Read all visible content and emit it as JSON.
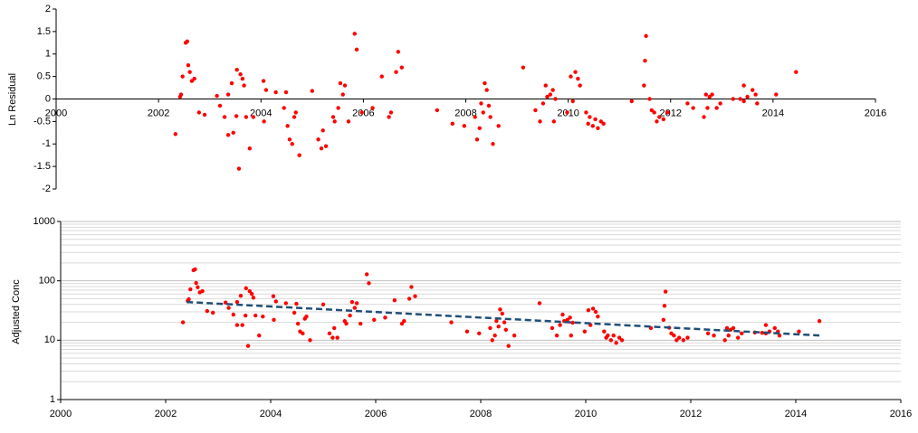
{
  "chart_data": [
    {
      "type": "scatter",
      "y_label": "Ln Residual",
      "color": "#ff0000",
      "xlim": [
        2000,
        2016
      ],
      "xticks": [
        2000,
        2002,
        2004,
        2006,
        2008,
        2010,
        2012,
        2014,
        2016
      ],
      "ylim": [
        -2,
        2
      ],
      "yticks": [
        2,
        1.5,
        1,
        0.5,
        0,
        -0.5,
        -1,
        -1.5,
        -2
      ],
      "log": false,
      "grid": false,
      "x": [
        2002.33,
        2002.42,
        2002.44,
        2002.47,
        2002.53,
        2002.56,
        2002.58,
        2002.61,
        2002.65,
        2002.7,
        2002.79,
        2002.9,
        2003.14,
        2003.2,
        2003.29,
        2003.36,
        2003.36,
        2003.43,
        2003.46,
        2003.52,
        2003.53,
        2003.57,
        2003.6,
        2003.64,
        2003.67,
        2003.71,
        2003.78,
        2003.85,
        2004.05,
        2004.06,
        2004.1,
        2004.29,
        2004.45,
        2004.49,
        2004.52,
        2004.56,
        2004.61,
        2004.65,
        2004.68,
        2004.75,
        2005.0,
        2005.12,
        2005.18,
        2005.21,
        2005.27,
        2005.41,
        2005.44,
        2005.51,
        2005.55,
        2005.6,
        2005.64,
        2005.71,
        2005.83,
        2005.87,
        2005.97,
        2006.18,
        2006.36,
        2006.5,
        2006.54,
        2006.64,
        2006.68,
        2006.75,
        2007.44,
        2007.74,
        2007.97,
        2008.18,
        2008.22,
        2008.27,
        2008.3,
        2008.34,
        2008.37,
        2008.41,
        2008.45,
        2008.48,
        2008.53,
        2008.64,
        2009.12,
        2009.36,
        2009.45,
        2009.51,
        2009.56,
        2009.59,
        2009.65,
        2009.7,
        2009.72,
        2009.75,
        2009.98,
        2010.05,
        2010.09,
        2010.14,
        2010.19,
        2010.23,
        2010.35,
        2010.39,
        2010.42,
        2010.48,
        2010.53,
        2010.58,
        2010.64,
        2010.69,
        2011.24,
        2011.48,
        2011.5,
        2011.52,
        2011.59,
        2011.63,
        2011.68,
        2011.73,
        2011.78,
        2011.86,
        2011.94,
        2012.33,
        2012.44,
        2012.65,
        2012.69,
        2012.72,
        2012.76,
        2012.81,
        2012.9,
        2012.97,
        2013.22,
        2013.36,
        2013.43,
        2013.43,
        2013.5,
        2013.6,
        2013.66,
        2013.69,
        2014.06,
        2014.45
      ],
      "values": [
        -0.78,
        0.05,
        0.1,
        0.5,
        1.25,
        1.28,
        0.75,
        0.6,
        0.4,
        0.45,
        -0.3,
        -0.35,
        0.07,
        -0.15,
        -0.4,
        0.1,
        -0.8,
        0.35,
        -0.75,
        -0.38,
        0.65,
        -1.55,
        0.55,
        0.45,
        0.3,
        -0.4,
        -1.1,
        -0.4,
        0.4,
        -0.5,
        0.2,
        0.15,
        -0.2,
        0.15,
        -0.6,
        -0.9,
        -1.0,
        -0.4,
        -0.3,
        -1.25,
        0.18,
        -0.9,
        -1.1,
        -0.7,
        -1.05,
        -0.4,
        -0.5,
        -0.2,
        0.35,
        0.1,
        0.3,
        -0.5,
        1.45,
        1.1,
        -0.3,
        -0.2,
        0.5,
        -0.4,
        -0.3,
        0.6,
        1.05,
        0.7,
        -0.25,
        -0.55,
        -0.6,
        -0.4,
        -0.9,
        -0.65,
        -0.1,
        -0.3,
        0.35,
        0.2,
        -0.15,
        -0.4,
        -1.0,
        -0.6,
        0.7,
        -0.25,
        -0.5,
        -0.1,
        0.3,
        0.05,
        0.1,
        0.2,
        -0.5,
        0,
        -0.3,
        0.5,
        -0.05,
        0.6,
        0.45,
        0.3,
        -0.3,
        -0.55,
        -0.4,
        -0.6,
        -0.45,
        -0.65,
        -0.5,
        -0.55,
        -0.05,
        0.3,
        0.85,
        1.4,
        0,
        -0.25,
        -0.3,
        -0.5,
        -0.4,
        -0.45,
        -0.3,
        -0.1,
        -0.2,
        -0.4,
        0.1,
        -0.2,
        0.05,
        0.1,
        -0.2,
        -0.1,
        0,
        0,
        -0.05,
        0.3,
        0.05,
        0.2,
        0.1,
        -0.1,
        0.1,
        0.6
      ]
    },
    {
      "type": "scatter",
      "y_label": "Adjusted Conc",
      "color": "#ff0000",
      "xlim": [
        2000,
        2016
      ],
      "xticks": [
        2000,
        2002,
        2004,
        2006,
        2008,
        2010,
        2012,
        2014,
        2016
      ],
      "ylim": [
        1,
        1000
      ],
      "yticks": [
        1,
        10,
        100,
        1000
      ],
      "log": true,
      "grid": true,
      "x": [
        2002.33,
        2002.42,
        2002.44,
        2002.47,
        2002.53,
        2002.56,
        2002.58,
        2002.61,
        2002.65,
        2002.7,
        2002.79,
        2002.9,
        2003.14,
        2003.2,
        2003.29,
        2003.36,
        2003.36,
        2003.43,
        2003.46,
        2003.52,
        2003.53,
        2003.57,
        2003.6,
        2003.64,
        2003.67,
        2003.71,
        2003.78,
        2003.85,
        2004.05,
        2004.06,
        2004.1,
        2004.29,
        2004.45,
        2004.49,
        2004.52,
        2004.56,
        2004.61,
        2004.65,
        2004.68,
        2004.75,
        2005.0,
        2005.12,
        2005.18,
        2005.21,
        2005.27,
        2005.41,
        2005.44,
        2005.51,
        2005.55,
        2005.6,
        2005.64,
        2005.71,
        2005.83,
        2005.87,
        2005.97,
        2006.18,
        2006.36,
        2006.5,
        2006.54,
        2006.64,
        2006.68,
        2006.75,
        2007.44,
        2007.74,
        2007.97,
        2008.18,
        2008.22,
        2008.27,
        2008.3,
        2008.34,
        2008.37,
        2008.41,
        2008.45,
        2008.48,
        2008.53,
        2008.64,
        2009.12,
        2009.36,
        2009.45,
        2009.51,
        2009.56,
        2009.59,
        2009.65,
        2009.7,
        2009.72,
        2009.75,
        2009.98,
        2010.05,
        2010.09,
        2010.14,
        2010.19,
        2010.23,
        2010.35,
        2010.39,
        2010.42,
        2010.48,
        2010.53,
        2010.58,
        2010.64,
        2010.69,
        2011.24,
        2011.48,
        2011.5,
        2011.52,
        2011.59,
        2011.63,
        2011.68,
        2011.73,
        2011.78,
        2011.86,
        2011.94,
        2012.33,
        2012.44,
        2012.65,
        2012.69,
        2012.72,
        2012.76,
        2012.81,
        2012.9,
        2012.97,
        2013.22,
        2013.36,
        2013.43,
        2013.43,
        2013.5,
        2013.6,
        2013.66,
        2013.69,
        2014.06,
        2014.45
      ],
      "values": [
        20,
        46,
        49,
        72,
        151,
        156,
        92,
        78,
        64,
        67,
        31,
        29,
        43,
        35,
        27,
        44,
        18,
        56,
        18,
        26,
        75,
        8,
        67,
        60,
        52,
        26,
        12,
        25,
        55,
        22,
        45,
        42,
        29,
        41,
        19,
        14,
        13,
        23,
        25,
        10,
        40,
        13,
        11,
        16,
        11,
        21,
        19,
        26,
        44,
        35,
        42,
        19,
        129,
        91,
        22,
        24,
        47,
        19,
        21,
        50,
        79,
        55,
        20,
        14,
        13,
        16,
        10,
        12,
        21,
        17,
        33,
        28,
        20,
        15,
        8,
        12,
        42,
        16,
        12,
        18,
        27,
        21,
        22,
        24,
        12,
        19.7,
        14,
        32,
        18,
        34,
        30,
        25,
        14,
        11,
        12,
        10,
        12,
        9,
        11,
        10,
        16,
        22,
        38,
        66,
        16.2,
        13,
        12,
        10,
        11,
        10,
        11,
        13,
        12,
        10,
        16,
        12,
        15,
        16,
        11,
        13,
        13.5,
        13.3,
        13,
        18,
        14,
        16,
        14,
        12,
        14,
        21
      ],
      "trend": {
        "x": [
          2002.4,
          2014.45
        ],
        "values": [
          44,
          12
        ],
        "color": "#1f4e79"
      }
    }
  ]
}
